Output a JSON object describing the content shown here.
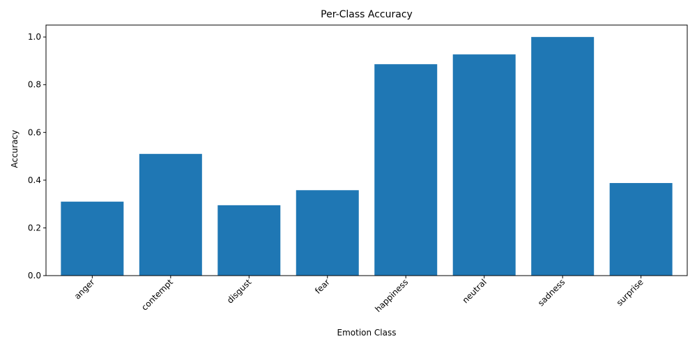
{
  "chart_data": {
    "type": "bar",
    "title": "Per-Class Accuracy",
    "xlabel": "Emotion Class",
    "ylabel": "Accuracy",
    "categories": [
      "anger",
      "contempt",
      "disgust",
      "fear",
      "happiness",
      "neutral",
      "sadness",
      "surprise"
    ],
    "values": [
      0.31,
      0.51,
      0.295,
      0.358,
      0.886,
      0.927,
      1.0,
      0.388
    ],
    "ylim": [
      0,
      1.05
    ],
    "yticks": [
      0.0,
      0.2,
      0.4,
      0.6,
      0.8,
      1.0
    ],
    "ytick_labels": [
      "0.0",
      "0.2",
      "0.4",
      "0.6",
      "0.8",
      "1.0"
    ],
    "bar_color": "#1f77b4",
    "grid": false,
    "xtick_rotation_deg": 45
  }
}
